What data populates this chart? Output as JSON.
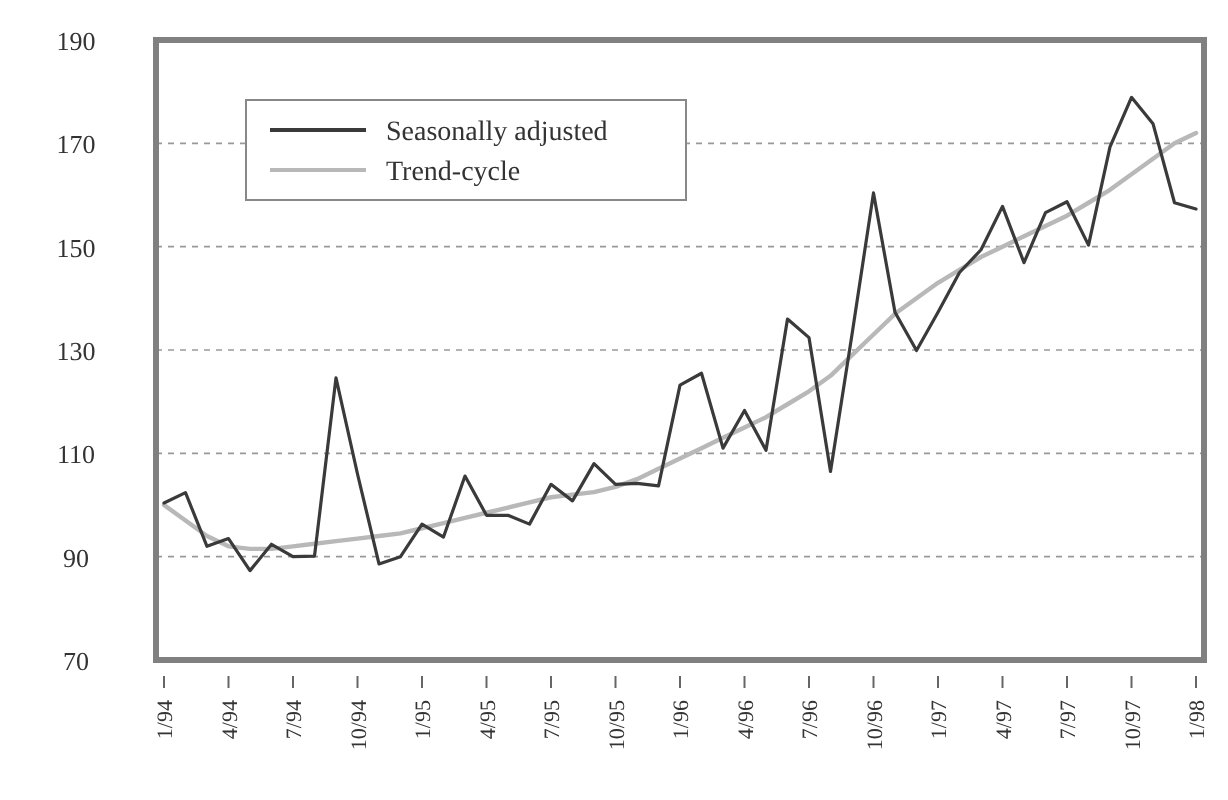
{
  "chart_data": {
    "type": "line",
    "categories": [
      "1/94",
      null,
      null,
      "4/94",
      null,
      null,
      "7/94",
      null,
      null,
      "10/94",
      null,
      null,
      "1/95",
      null,
      null,
      "4/95",
      null,
      null,
      "7/95",
      null,
      null,
      "10/95",
      null,
      null,
      "1/96",
      null,
      null,
      "4/96",
      null,
      null,
      "7/96",
      null,
      null,
      "10/96",
      null,
      null,
      "1/97",
      null,
      null,
      "4/97",
      null,
      null,
      "7/97",
      null,
      null,
      "10/97",
      null,
      null,
      "1/98"
    ],
    "series": [
      {
        "name": "Seasonally adjusted",
        "color": "#3a3a3a",
        "values": [
          100.4,
          102.4,
          92,
          93.5,
          87.3,
          92.4,
          90,
          90.1,
          124.6,
          106,
          88.6,
          90,
          96.3,
          93.8,
          105.6,
          98,
          98,
          96.3,
          104,
          100.8,
          108,
          104,
          104.2,
          103.7,
          123.2,
          125.5,
          111,
          118.3,
          110.6,
          136,
          132.4,
          106.5,
          133,
          160.4,
          137.3,
          129.9,
          137.3,
          145,
          149.4,
          157.8,
          146.9,
          156.6,
          158.7,
          150.3,
          169.3,
          178.9,
          173.8,
          158.5,
          157.3
        ]
      },
      {
        "name": "Trend-cycle",
        "color": "#b8b8b8",
        "values": [
          100,
          97,
          94,
          92,
          91.5,
          91.5,
          92,
          92.5,
          93,
          93.5,
          94,
          94.5,
          95.5,
          96.5,
          97.5,
          98.5,
          99.5,
          100.5,
          101.5,
          102,
          102.5,
          103.5,
          105,
          107,
          109,
          111,
          113,
          115,
          117,
          119.5,
          122,
          125,
          129,
          133,
          137,
          140,
          143,
          145.5,
          148,
          150,
          152,
          154,
          156,
          158.5,
          161,
          164,
          167,
          170,
          172
        ]
      }
    ],
    "ylim": [
      70,
      190
    ],
    "yticks": [
      70,
      90,
      110,
      130,
      150,
      170,
      190
    ],
    "grid": "y",
    "legend": "top left",
    "line_style": "solid"
  }
}
